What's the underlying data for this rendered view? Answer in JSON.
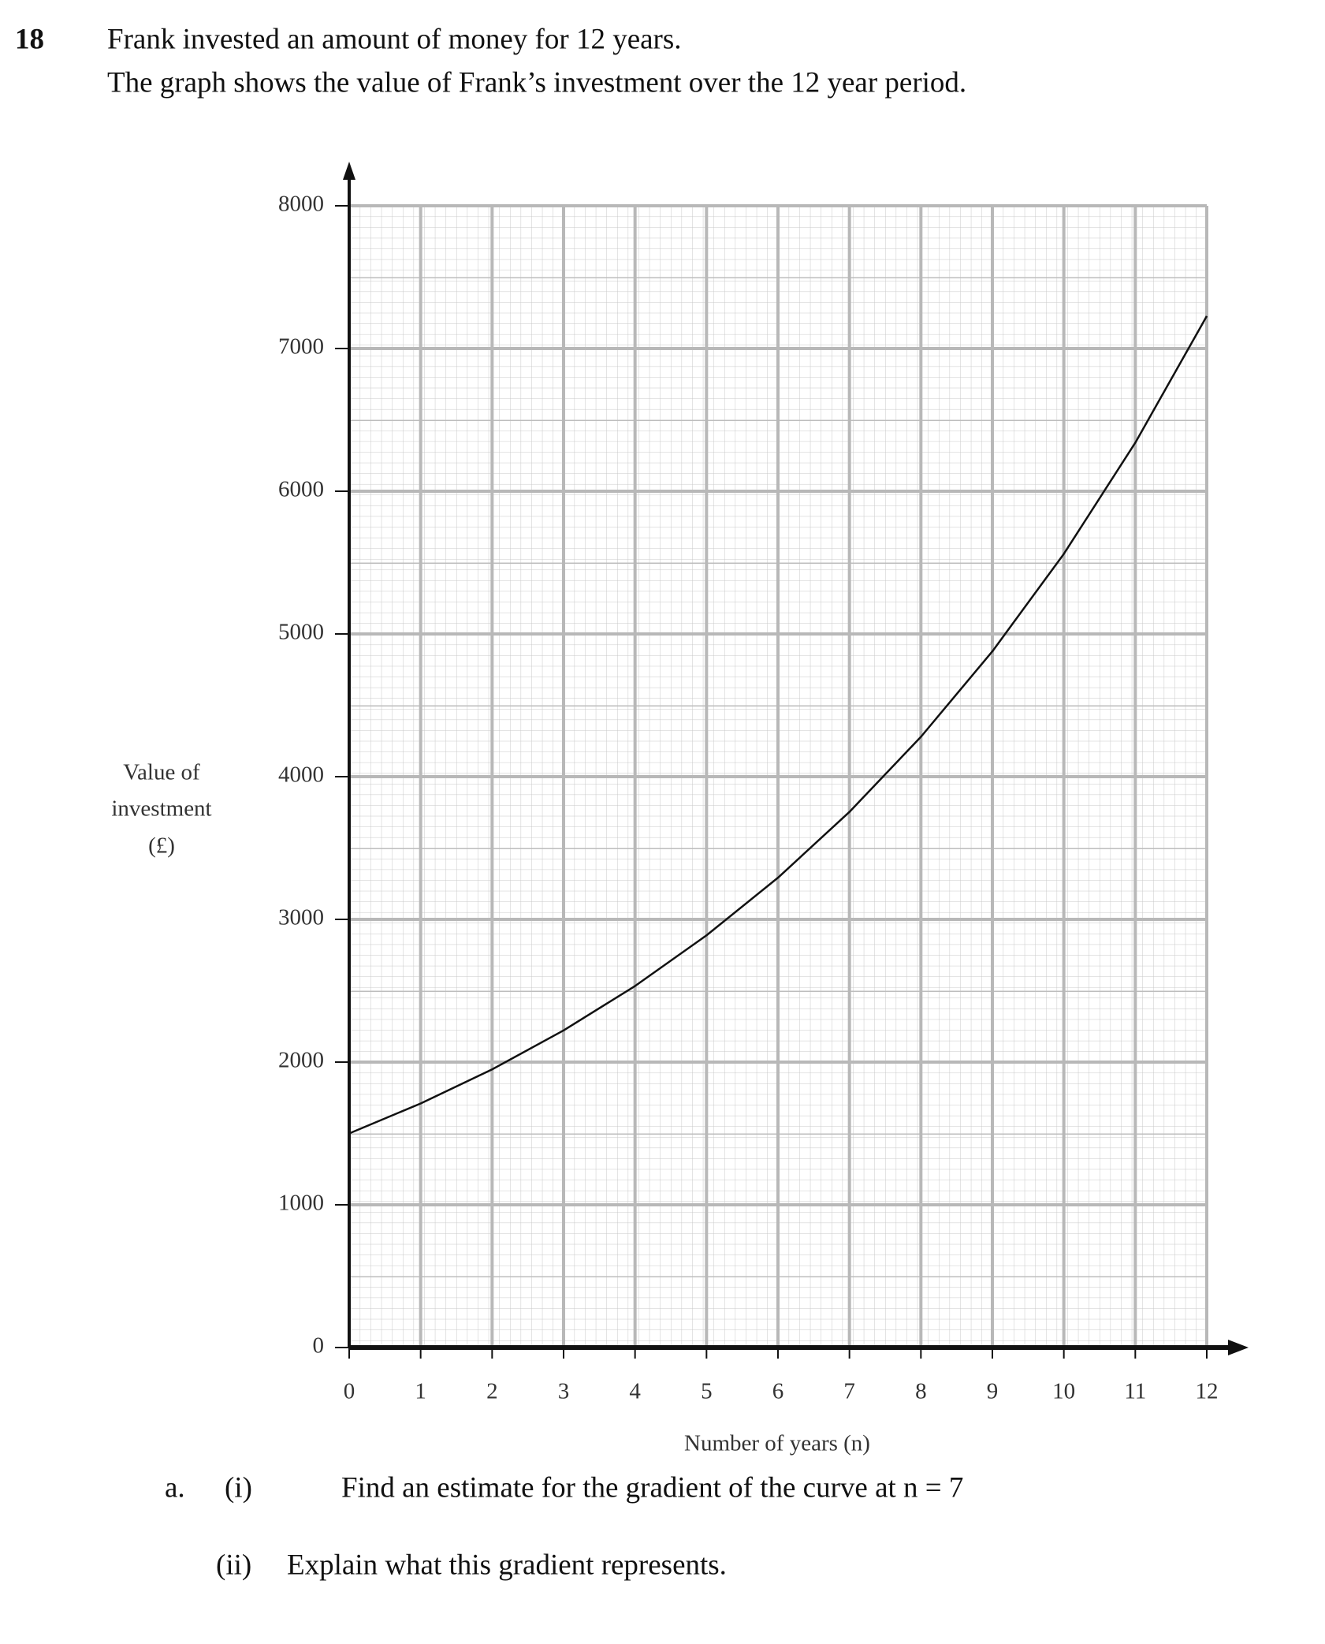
{
  "question": {
    "number": "18",
    "lines": [
      "Frank invested an amount of money for 12 years.",
      "The graph shows the value of Frank’s investment over the 12 year period."
    ]
  },
  "chart_data": {
    "type": "line",
    "x_label": "Number of years (n)",
    "y_label": [
      "Value of",
      "investment",
      "(£)"
    ],
    "x": [
      0,
      1,
      2,
      3,
      4,
      5,
      6,
      7,
      8,
      9,
      10,
      11,
      12
    ],
    "series": [
      {
        "color": "#111111",
        "values": [
          1500,
          1710,
          1949,
          2222,
          2533,
          2888,
          3292,
          3753,
          4279,
          4878,
          5561,
          6340,
          7227
        ]
      }
    ],
    "xlim": [
      0,
      12
    ],
    "xticks": [
      0,
      1,
      2,
      3,
      4,
      5,
      6,
      7,
      8,
      9,
      10,
      11,
      12
    ],
    "ylim": [
      0,
      8000
    ],
    "yticks": [
      0,
      1000,
      2000,
      3000,
      4000,
      5000,
      6000,
      7000,
      8000
    ],
    "grid": true
  },
  "parts": {
    "letter": "a.",
    "items": [
      {
        "label": "(i)",
        "text": "Find an estimate for the gradient of the curve at n = 7"
      },
      {
        "label": "(ii)",
        "text": "Explain what this gradient represents."
      }
    ]
  }
}
